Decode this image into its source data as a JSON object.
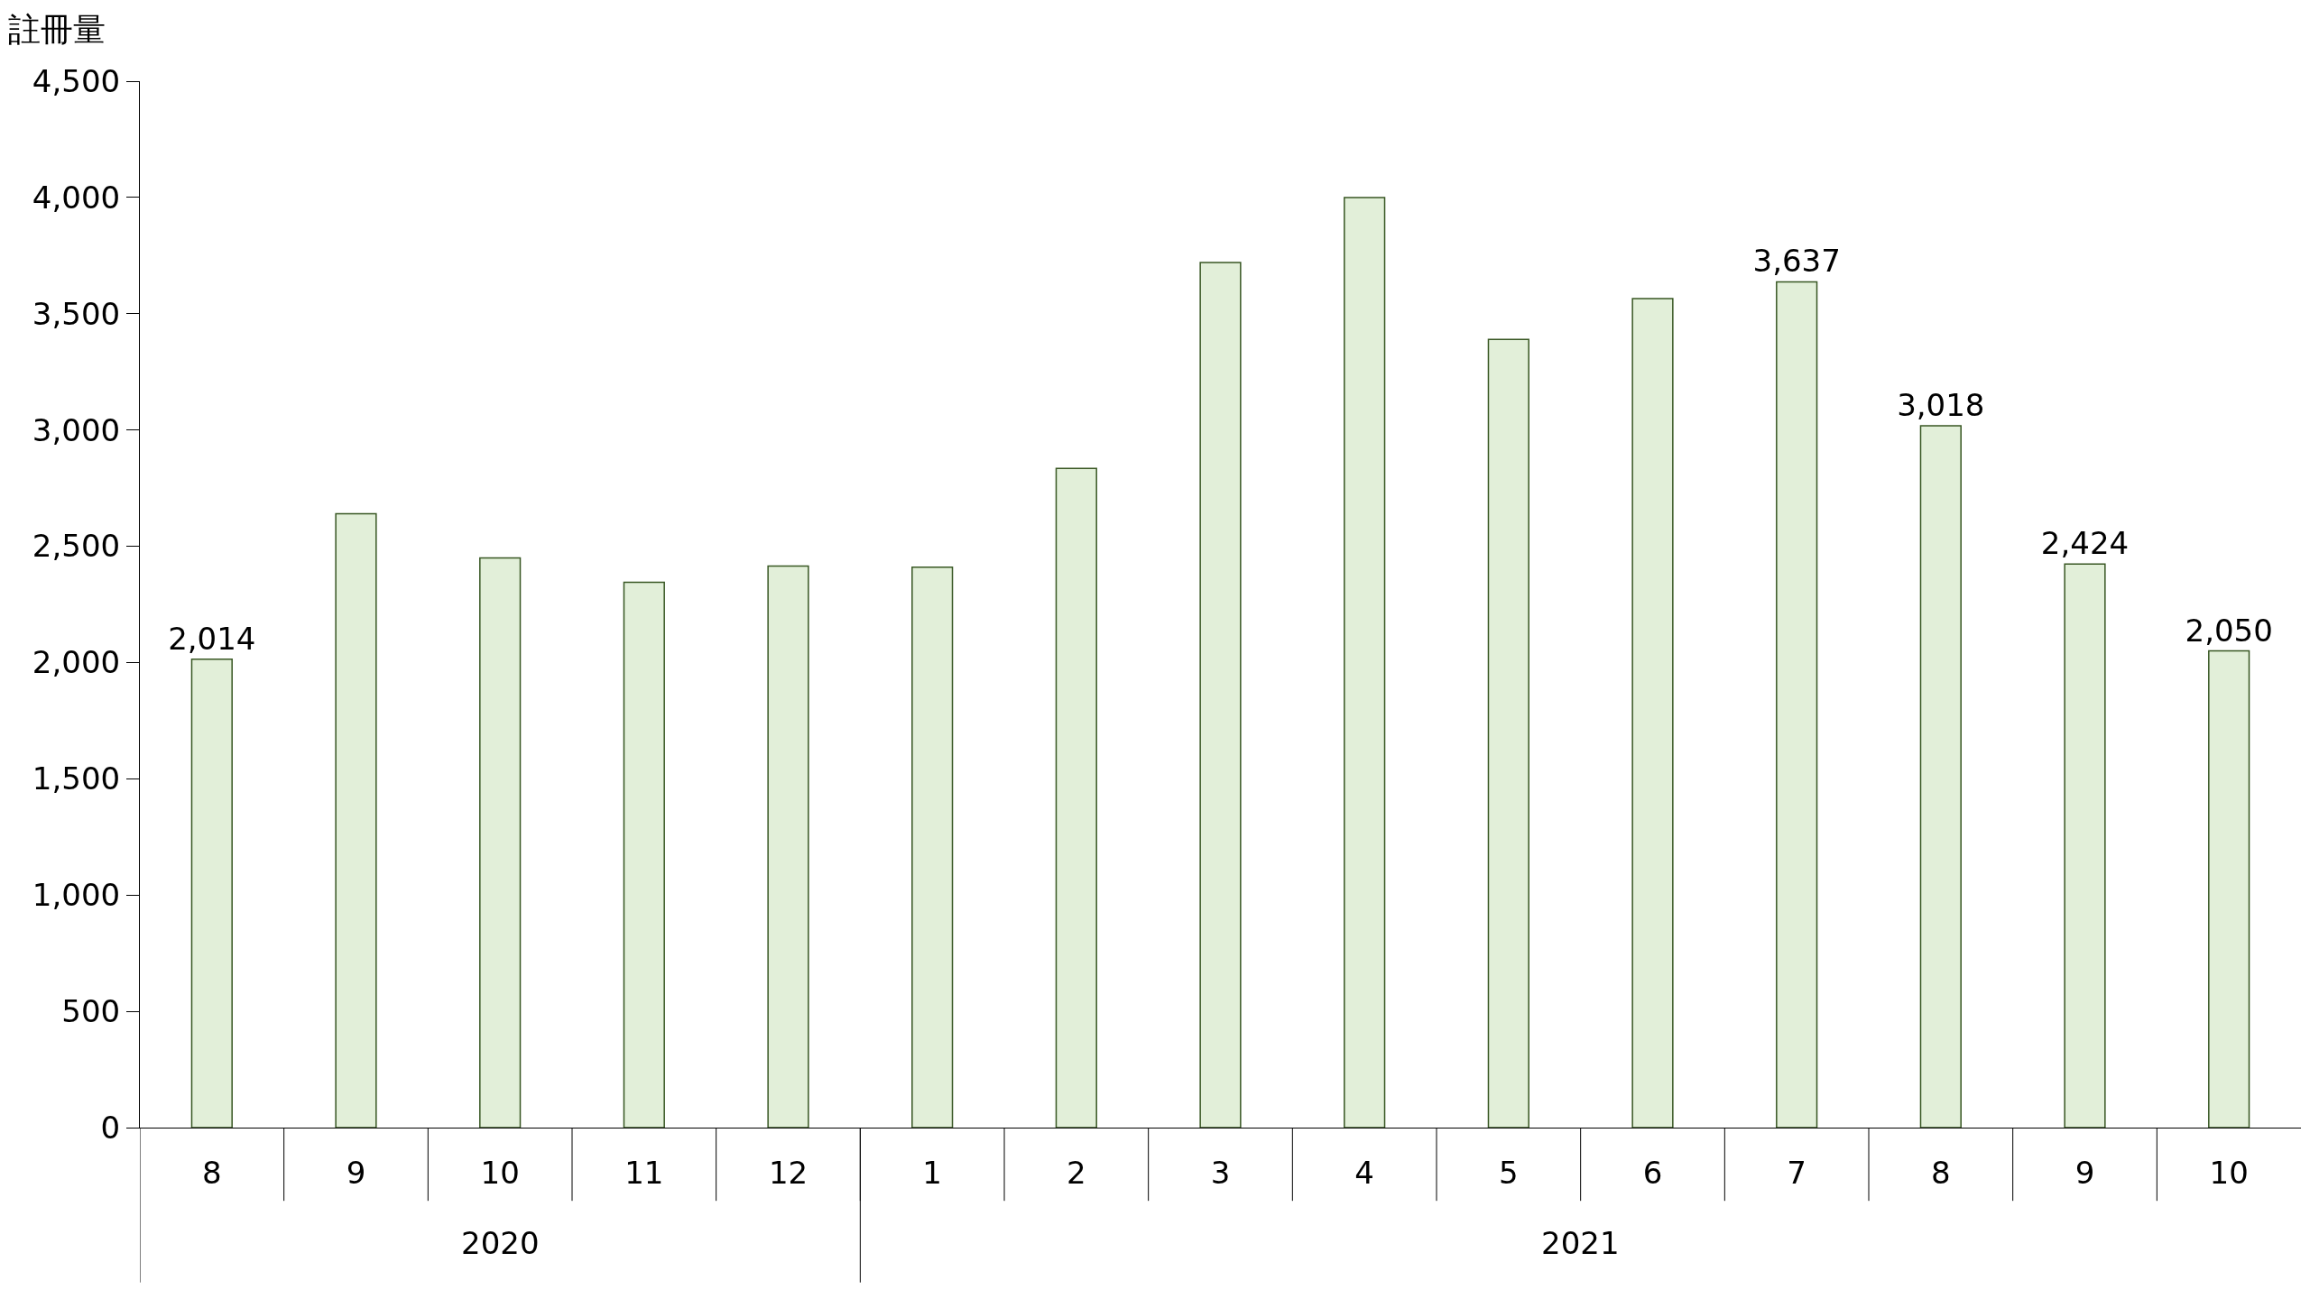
{
  "chart_data": {
    "type": "bar",
    "ylabel": "註冊量",
    "categories": [
      "8",
      "9",
      "10",
      "11",
      "12",
      "1",
      "2",
      "3",
      "4",
      "5",
      "6",
      "7",
      "8",
      "9",
      "10"
    ],
    "values": [
      2014,
      2640,
      2450,
      2345,
      2415,
      2410,
      2835,
      3720,
      4000,
      3390,
      3565,
      3637,
      3018,
      2424,
      2050
    ],
    "value_labels": [
      "2,014",
      null,
      null,
      null,
      null,
      null,
      null,
      null,
      null,
      null,
      null,
      "3,637",
      "3,018",
      "2,424",
      "2,050"
    ],
    "color": "#e2efd9",
    "annotations": [
      "2020",
      "2021"
    ],
    "ylim": [
      0,
      4500
    ],
    "yticks": [
      {
        "value": 0,
        "label": "0"
      },
      {
        "value": 500,
        "label": "500"
      },
      {
        "value": 1000,
        "label": "1,000"
      },
      {
        "value": 1500,
        "label": "1,500"
      },
      {
        "value": 2000,
        "label": "2,000"
      },
      {
        "value": 2500,
        "label": "2,500"
      },
      {
        "value": 3000,
        "label": "3,000"
      },
      {
        "value": 3500,
        "label": "3,500"
      },
      {
        "value": 4000,
        "label": "4,000"
      },
      {
        "value": 4500,
        "label": "4,500"
      }
    ]
  }
}
